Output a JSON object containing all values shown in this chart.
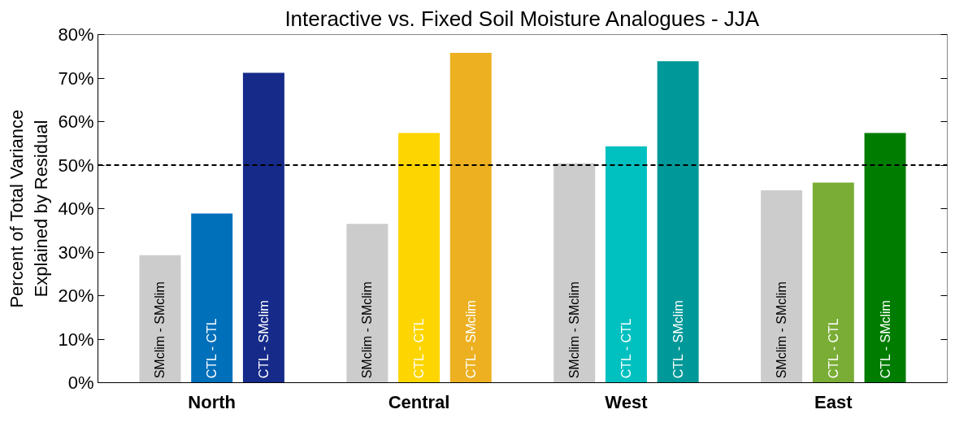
{
  "chart_data": {
    "type": "bar",
    "title": "Interactive vs. Fixed Soil Moisture Analogues - JJA",
    "ylabel": "Percent of Total Variance\nExplained by Residual",
    "categories": [
      "North",
      "Central",
      "West",
      "East"
    ],
    "series": [
      {
        "name": "SMclim - SMclim",
        "colors": [
          "#cccccc",
          "#cccccc",
          "#cccccc",
          "#cccccc"
        ],
        "values": [
          29.3,
          36.5,
          50.4,
          44.2
        ]
      },
      {
        "name": "CTL - CTL",
        "colors": [
          "#0070bb",
          "#fdd500",
          "#00c0c0",
          "#7aad35"
        ],
        "values": [
          38.9,
          57.4,
          54.3,
          46.0
        ]
      },
      {
        "name": "CTL - SMclim",
        "colors": [
          "#162a8a",
          "#ecb021",
          "#009898",
          "#007c00"
        ],
        "values": [
          71.2,
          75.8,
          73.9,
          57.4
        ]
      }
    ],
    "ylim": [
      0,
      80
    ],
    "yticks": [
      {
        "value": 0,
        "label": "0%"
      },
      {
        "value": 10,
        "label": "10%"
      },
      {
        "value": 20,
        "label": "20%"
      },
      {
        "value": 30,
        "label": "30%"
      },
      {
        "value": 40,
        "label": "40%"
      },
      {
        "value": 50,
        "label": "50%"
      },
      {
        "value": 60,
        "label": "60%"
      },
      {
        "value": 70,
        "label": "70%"
      },
      {
        "value": 80,
        "label": "80%"
      }
    ],
    "ref_lines": [
      {
        "axis": "y",
        "value": 50,
        "label": null,
        "color": "#000000",
        "line_style": "dashed"
      }
    ],
    "grid": false
  }
}
